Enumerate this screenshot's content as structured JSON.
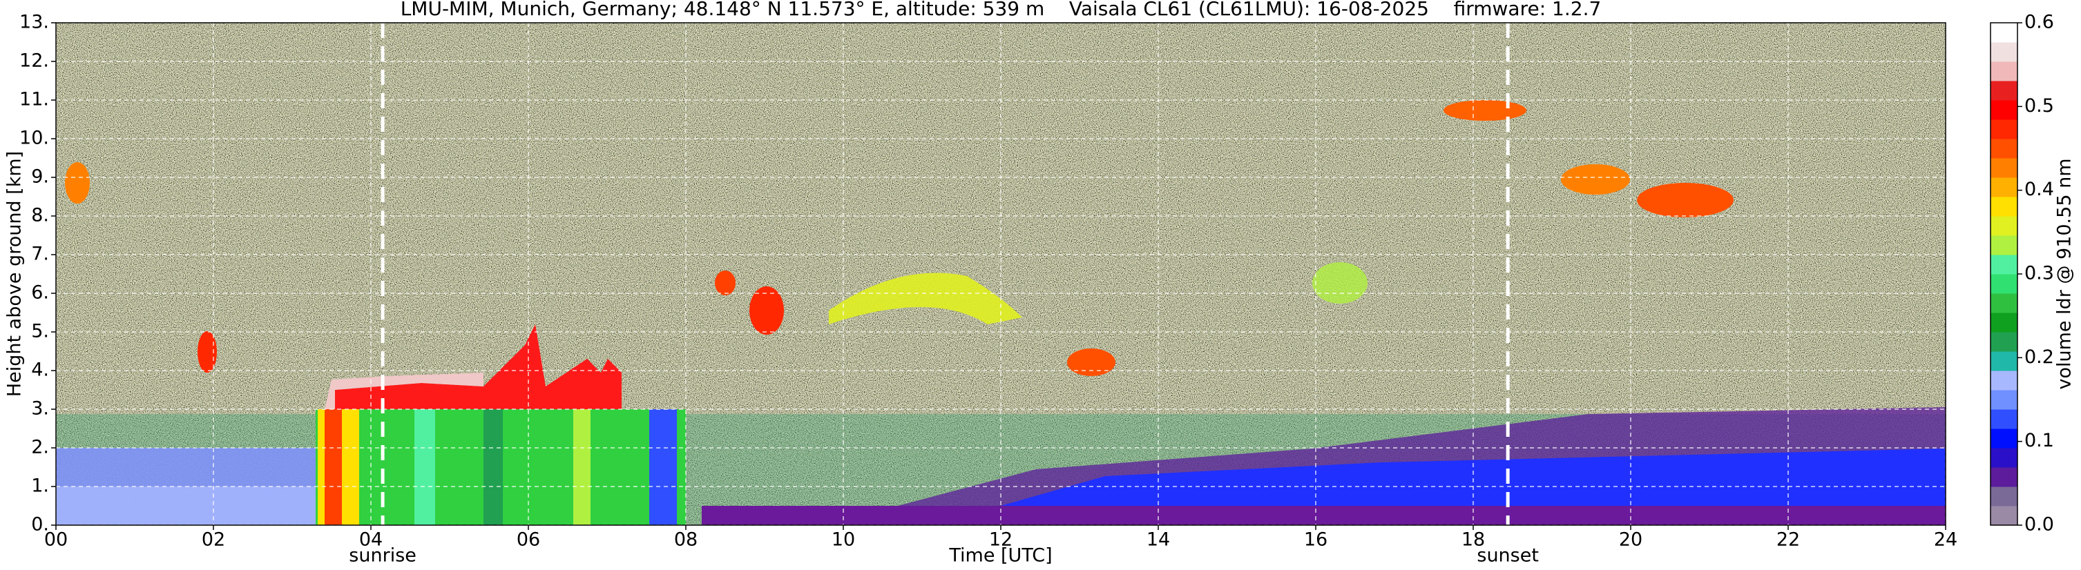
{
  "chart_data": {
    "type": "heatmap",
    "title": "LMU-MIM, Munich, Germany; 48.148° N 11.573° E, altitude: 539 m    Vaisala CL61 (CL61LMU): 16-08-2025    firmware: 1.2.7",
    "x_label": "Time [UTC]",
    "y_label": "Height above ground [km]",
    "xlim": [
      0,
      24
    ],
    "xticks": [
      {
        "value": 0,
        "label": "00"
      },
      {
        "value": 2,
        "label": "02"
      },
      {
        "value": 4,
        "label": "04"
      },
      {
        "value": 6,
        "label": "06"
      },
      {
        "value": 8,
        "label": "08"
      },
      10,
      12,
      14,
      16,
      18,
      20,
      22,
      24
    ],
    "ylim": [
      0,
      13
    ],
    "yticks": [
      {
        "value": 0,
        "label": "0."
      },
      {
        "value": 1,
        "label": "1."
      },
      {
        "value": 2,
        "label": "2."
      },
      {
        "value": 3,
        "label": "3."
      },
      {
        "value": 4,
        "label": "4."
      },
      {
        "value": 5,
        "label": "5."
      },
      {
        "value": 6,
        "label": "6."
      },
      {
        "value": 7,
        "label": "7."
      },
      {
        "value": 8,
        "label": "8."
      },
      {
        "value": 9,
        "label": "9."
      },
      {
        "value": 10,
        "label": "10."
      },
      {
        "value": 11,
        "label": "11."
      },
      {
        "value": 12,
        "label": "12."
      },
      {
        "value": 13,
        "label": "13."
      }
    ],
    "grid": true,
    "colorbar": {
      "label": "volume ldr @ 910.55 nm",
      "clim": [
        0,
        0.6
      ],
      "ticks": [
        {
          "value": 0,
          "label": "0.0"
        },
        0.1,
        0.2,
        0.3,
        0.4,
        0.5,
        0.6
      ],
      "colormap": [
        "#9a8aa6",
        "#7a6a98",
        "#5c1c9c",
        "#2a10c8",
        "#0010ff",
        "#3050ff",
        "#7090ff",
        "#a8b8ff",
        "#20b8a8",
        "#20a050",
        "#10a020",
        "#30c040",
        "#30e070",
        "#50f0a0",
        "#b0f040",
        "#e0f020",
        "#ffe000",
        "#ffb000",
        "#ff8000",
        "#ff5000",
        "#ff2800",
        "#ff0000",
        "#e82020",
        "#f0b8b8",
        "#f0e0e0",
        "#ffffff"
      ]
    },
    "annotations": [
      {
        "label": "sunrise",
        "x": 4.15
      },
      {
        "label": "sunset",
        "x": 18.44
      }
    ]
  }
}
